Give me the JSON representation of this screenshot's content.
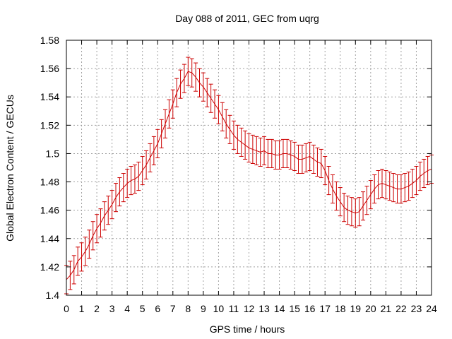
{
  "chart_data": {
    "type": "line",
    "title": "Day 088 of 2011, GEC from uqrg",
    "xlabel": "GPS time / hours",
    "ylabel": "Global Electron Content / GECUs",
    "xlim": [
      0,
      24
    ],
    "ylim": [
      1.4,
      1.58
    ],
    "grid": true,
    "legend": "none",
    "x_ticks": [
      "0",
      "1",
      "2",
      "3",
      "4",
      "5",
      "6",
      "7",
      "8",
      "9",
      "10",
      "11",
      "12",
      "13",
      "14",
      "15",
      "16",
      "17",
      "18",
      "19",
      "20",
      "21",
      "22",
      "23",
      "24"
    ],
    "y_ticks": [
      "1.4",
      "1.42",
      "1.44",
      "1.46",
      "1.48",
      "1.5",
      "1.52",
      "1.54",
      "1.56",
      "1.58"
    ],
    "colors": {
      "series": "#cc0000",
      "grid": "#a0a0a0",
      "frame": "#000000"
    },
    "series": [
      {
        "error": 0.01,
        "x": [
          0.0,
          0.25,
          0.5,
          0.75,
          1.0,
          1.25,
          1.5,
          1.75,
          2.0,
          2.25,
          2.5,
          2.75,
          3.0,
          3.25,
          3.5,
          3.75,
          4.0,
          4.25,
          4.5,
          4.75,
          5.0,
          5.25,
          5.5,
          5.75,
          6.0,
          6.25,
          6.5,
          6.75,
          7.0,
          7.25,
          7.5,
          7.75,
          8.0,
          8.25,
          8.5,
          8.75,
          9.0,
          9.25,
          9.5,
          9.75,
          10.0,
          10.25,
          10.5,
          10.75,
          11.0,
          11.25,
          11.5,
          11.75,
          12.0,
          12.25,
          12.5,
          12.75,
          13.0,
          13.25,
          13.5,
          13.75,
          14.0,
          14.25,
          14.5,
          14.75,
          15.0,
          15.25,
          15.5,
          15.75,
          16.0,
          16.25,
          16.5,
          16.75,
          17.0,
          17.25,
          17.5,
          17.75,
          18.0,
          18.25,
          18.5,
          18.75,
          19.0,
          19.25,
          19.5,
          19.75,
          20.0,
          20.25,
          20.5,
          20.75,
          21.0,
          21.25,
          21.5,
          21.75,
          22.0,
          22.25,
          22.5,
          22.75,
          23.0,
          23.25,
          23.5,
          23.75,
          24.0
        ],
        "y": [
          1.411,
          1.414,
          1.418,
          1.424,
          1.427,
          1.431,
          1.436,
          1.442,
          1.447,
          1.451,
          1.456,
          1.46,
          1.464,
          1.469,
          1.473,
          1.476,
          1.479,
          1.481,
          1.482,
          1.484,
          1.488,
          1.492,
          1.497,
          1.502,
          1.507,
          1.514,
          1.521,
          1.528,
          1.535,
          1.543,
          1.549,
          1.553,
          1.558,
          1.557,
          1.554,
          1.55,
          1.547,
          1.543,
          1.539,
          1.535,
          1.531,
          1.526,
          1.521,
          1.517,
          1.513,
          1.51,
          1.508,
          1.506,
          1.504,
          1.503,
          1.502,
          1.501,
          1.502,
          1.5,
          1.5,
          1.499,
          1.499,
          1.5,
          1.5,
          1.499,
          1.498,
          1.496,
          1.496,
          1.497,
          1.498,
          1.496,
          1.494,
          1.493,
          1.488,
          1.481,
          1.475,
          1.47,
          1.466,
          1.462,
          1.46,
          1.459,
          1.458,
          1.459,
          1.463,
          1.467,
          1.471,
          1.475,
          1.478,
          1.479,
          1.478,
          1.477,
          1.476,
          1.475,
          1.475,
          1.476,
          1.477,
          1.479,
          1.481,
          1.484,
          1.486,
          1.488,
          1.489
        ]
      }
    ]
  }
}
